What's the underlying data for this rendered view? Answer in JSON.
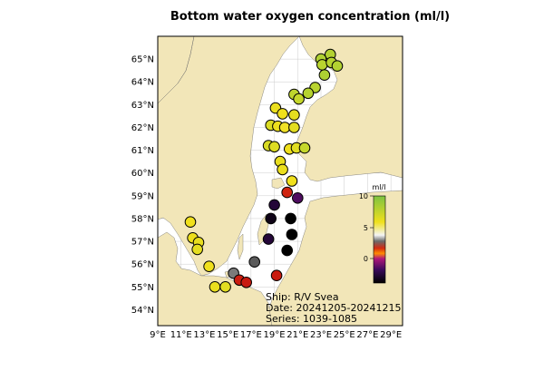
{
  "title": "Bottom water oxygen concentration (ml/l)",
  "axes": {
    "lon_ticks": [
      "9°E",
      "11°E",
      "13°E",
      "15°E",
      "17°E",
      "19°E",
      "21°E",
      "23°E",
      "25°E",
      "27°E",
      "29°E"
    ],
    "lat_ticks": [
      "54°N",
      "55°N",
      "56°N",
      "57°N",
      "58°N",
      "59°N",
      "60°N",
      "61°N",
      "62°N",
      "63°N",
      "64°N",
      "65°N"
    ]
  },
  "colorbar": {
    "label": "ml/l",
    "ticks": [
      "10",
      "5",
      "0"
    ],
    "colors": {
      "top": "#7dc242",
      "upper": "#f0e01c",
      "mid": "#9a9a9a",
      "red": "#d42a10",
      "low": "#3a0a5a",
      "bottom": "#000000"
    }
  },
  "info": {
    "ship": "Ship: R/V Svea",
    "date": "Date: 20241205-20241215",
    "series": "Series: 1039-1085"
  },
  "chart_data": {
    "type": "scatter",
    "x_axis": "longitude (°E)",
    "y_axis": "latitude (°N)",
    "xlim": [
      9,
      30
    ],
    "ylim": [
      53.3,
      66.0
    ],
    "color_scale": {
      "min": -3,
      "max": 10,
      "unit": "ml/l"
    },
    "stations": [
      {
        "lon": 23.8,
        "lat": 65.2,
        "oxygen": 8.2
      },
      {
        "lon": 23.0,
        "lat": 65.0,
        "oxygen": 8.3
      },
      {
        "lon": 23.1,
        "lat": 64.75,
        "oxygen": 8.0
      },
      {
        "lon": 23.9,
        "lat": 64.85,
        "oxygen": 8.1
      },
      {
        "lon": 24.4,
        "lat": 64.7,
        "oxygen": 8.2
      },
      {
        "lon": 23.3,
        "lat": 64.3,
        "oxygen": 8.4
      },
      {
        "lon": 22.5,
        "lat": 63.75,
        "oxygen": 8.0
      },
      {
        "lon": 21.9,
        "lat": 63.5,
        "oxygen": 8.1
      },
      {
        "lon": 20.7,
        "lat": 63.45,
        "oxygen": 7.8
      },
      {
        "lon": 21.1,
        "lat": 63.25,
        "oxygen": 7.6
      },
      {
        "lon": 19.1,
        "lat": 62.85,
        "oxygen": 6.2
      },
      {
        "lon": 19.7,
        "lat": 62.6,
        "oxygen": 6.0
      },
      {
        "lon": 20.7,
        "lat": 62.55,
        "oxygen": 6.4
      },
      {
        "lon": 18.7,
        "lat": 62.1,
        "oxygen": 6.8
      },
      {
        "lon": 19.3,
        "lat": 62.05,
        "oxygen": 6.1
      },
      {
        "lon": 19.9,
        "lat": 62.0,
        "oxygen": 5.9
      },
      {
        "lon": 20.7,
        "lat": 62.0,
        "oxygen": 6.5
      },
      {
        "lon": 18.5,
        "lat": 61.2,
        "oxygen": 6.9
      },
      {
        "lon": 19.0,
        "lat": 61.15,
        "oxygen": 6.7
      },
      {
        "lon": 20.3,
        "lat": 61.05,
        "oxygen": 6.0
      },
      {
        "lon": 20.9,
        "lat": 61.1,
        "oxygen": 6.6
      },
      {
        "lon": 21.6,
        "lat": 61.1,
        "oxygen": 7.6
      },
      {
        "lon": 19.5,
        "lat": 60.5,
        "oxygen": 6.3
      },
      {
        "lon": 19.7,
        "lat": 60.15,
        "oxygen": 6.2
      },
      {
        "lon": 20.5,
        "lat": 59.65,
        "oxygen": 6.0
      },
      {
        "lon": 20.1,
        "lat": 59.15,
        "oxygen": 0.8
      },
      {
        "lon": 21.0,
        "lat": 58.9,
        "oxygen": -2.0
      },
      {
        "lon": 19.0,
        "lat": 58.6,
        "oxygen": -2.5
      },
      {
        "lon": 18.7,
        "lat": 58.0,
        "oxygen": -2.8
      },
      {
        "lon": 20.4,
        "lat": 58.0,
        "oxygen": -3.0
      },
      {
        "lon": 20.5,
        "lat": 57.3,
        "oxygen": -3.0
      },
      {
        "lon": 18.5,
        "lat": 57.1,
        "oxygen": -2.5
      },
      {
        "lon": 20.1,
        "lat": 56.6,
        "oxygen": -3.0
      },
      {
        "lon": 11.8,
        "lat": 57.85,
        "oxygen": 6.0
      },
      {
        "lon": 12.0,
        "lat": 57.15,
        "oxygen": 6.1
      },
      {
        "lon": 12.5,
        "lat": 56.95,
        "oxygen": 6.3
      },
      {
        "lon": 12.4,
        "lat": 56.65,
        "oxygen": 6.4
      },
      {
        "lon": 13.4,
        "lat": 55.9,
        "oxygen": 6.0
      },
      {
        "lon": 13.9,
        "lat": 55.0,
        "oxygen": 6.2
      },
      {
        "lon": 14.8,
        "lat": 55.0,
        "oxygen": 6.5
      },
      {
        "lon": 15.5,
        "lat": 55.6,
        "oxygen": 2.5
      },
      {
        "lon": 16.0,
        "lat": 55.3,
        "oxygen": 0.4
      },
      {
        "lon": 16.6,
        "lat": 55.2,
        "oxygen": 0.2
      },
      {
        "lon": 17.3,
        "lat": 56.1,
        "oxygen": 2.0
      },
      {
        "lon": 19.2,
        "lat": 55.5,
        "oxygen": 0.3
      }
    ]
  }
}
